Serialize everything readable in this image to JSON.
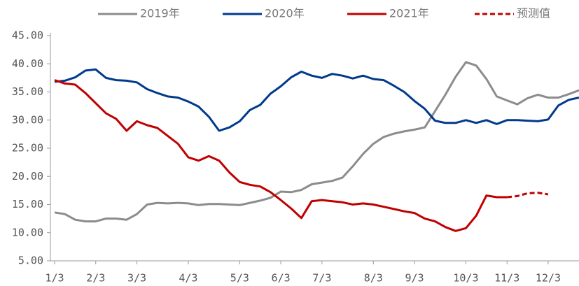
{
  "chart_data": {
    "type": "line",
    "categories": [
      "1/3",
      null,
      null,
      null,
      "2/3",
      null,
      null,
      null,
      "3/3",
      null,
      null,
      null,
      null,
      "4/3",
      null,
      null,
      null,
      null,
      "5/3",
      null,
      null,
      null,
      "6/3",
      null,
      null,
      null,
      "7/3",
      null,
      null,
      null,
      null,
      "8/3",
      null,
      null,
      null,
      "9/3",
      null,
      null,
      null,
      null,
      "10/3",
      null,
      null,
      null,
      "11/3",
      null,
      null,
      null,
      "12/3",
      null,
      null,
      null
    ],
    "series": [
      {
        "name": "2019年",
        "color": "#8c8c8c",
        "dashed": false,
        "values": [
          13.6,
          13.3,
          12.3,
          12.0,
          12.0,
          12.5,
          12.5,
          12.3,
          13.3,
          15.0,
          15.3,
          15.2,
          15.3,
          15.2,
          14.9,
          15.1,
          15.1,
          15.0,
          14.9,
          15.3,
          15.7,
          16.2,
          17.3,
          17.2,
          17.6,
          18.6,
          18.9,
          19.2,
          19.8,
          21.8,
          24.0,
          25.8,
          27.0,
          27.6,
          28.0,
          28.3,
          28.7,
          31.6,
          34.5,
          37.7,
          40.3,
          39.7,
          37.3,
          34.2,
          33.5,
          32.8,
          33.9,
          34.5,
          34.0,
          34.0,
          34.6,
          35.3
        ]
      },
      {
        "name": "2020年",
        "color": "#003a8c",
        "dashed": false,
        "values": [
          36.8,
          37.0,
          37.6,
          38.8,
          39.0,
          37.5,
          37.1,
          37.0,
          36.7,
          35.5,
          34.8,
          34.2,
          34.0,
          33.3,
          32.4,
          30.6,
          28.1,
          28.7,
          29.8,
          31.8,
          32.7,
          34.7,
          36.0,
          37.6,
          38.6,
          37.9,
          37.5,
          38.2,
          37.9,
          37.4,
          37.9,
          37.3,
          37.1,
          36.1,
          35.0,
          33.4,
          32.0,
          29.9,
          29.5,
          29.5,
          30.0,
          29.5,
          30.0,
          29.3,
          30.0,
          30.0,
          29.9,
          29.8,
          30.1,
          32.6,
          33.6,
          34.0
        ]
      },
      {
        "name": "2021年",
        "color": "#c00000",
        "dashed": false,
        "values": [
          37.1,
          36.5,
          36.3,
          34.8,
          33.0,
          31.2,
          30.2,
          28.1,
          29.8,
          29.1,
          28.6,
          27.2,
          25.8,
          23.4,
          22.8,
          23.6,
          22.8,
          20.7,
          19.0,
          18.5,
          18.2,
          17.2,
          15.8,
          14.3,
          12.6,
          15.6,
          15.8,
          15.6,
          15.4,
          15.0,
          15.2,
          15.0,
          14.6,
          14.2,
          13.8,
          13.5,
          12.5,
          12.0,
          11.0,
          10.3,
          10.8,
          13.0,
          16.6,
          16.3,
          16.3,
          null,
          null,
          null,
          null,
          null,
          null,
          null
        ]
      },
      {
        "name": "预测值",
        "color": "#c00000",
        "dashed": true,
        "values": [
          null,
          null,
          null,
          null,
          null,
          null,
          null,
          null,
          null,
          null,
          null,
          null,
          null,
          null,
          null,
          null,
          null,
          null,
          null,
          null,
          null,
          null,
          null,
          null,
          null,
          null,
          null,
          null,
          null,
          null,
          null,
          null,
          null,
          null,
          null,
          null,
          null,
          null,
          null,
          null,
          null,
          null,
          null,
          null,
          16.3,
          16.5,
          17.0,
          17.1,
          16.8,
          null,
          null,
          null
        ]
      }
    ],
    "ylim": [
      5,
      45
    ],
    "yticks": [
      {
        "value": 5,
        "label": "5.00"
      },
      {
        "value": 10,
        "label": "10.00"
      },
      {
        "value": 15,
        "label": "15.00"
      },
      {
        "value": 20,
        "label": "20.00"
      },
      {
        "value": 25,
        "label": "25.00"
      },
      {
        "value": 30,
        "label": "30.00"
      },
      {
        "value": 35,
        "label": "35.00"
      },
      {
        "value": 40,
        "label": "40.00"
      },
      {
        "value": 45,
        "label": "45.00"
      }
    ],
    "grid": false
  }
}
